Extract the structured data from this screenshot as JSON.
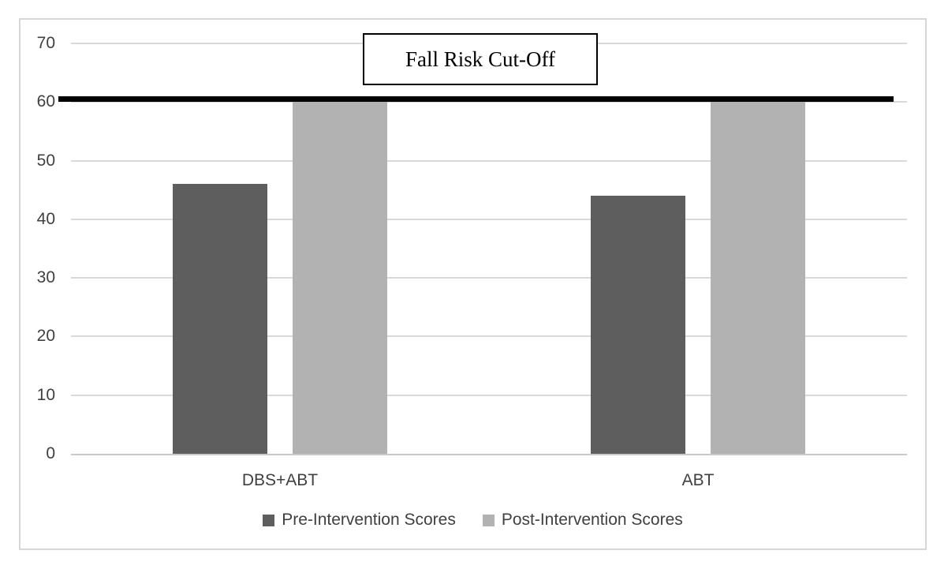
{
  "title_box": {
    "label": "Fall Risk Cut-Off"
  },
  "legend": {
    "items": [
      {
        "label": "Pre-Intervention Scores"
      },
      {
        "label": "Post-Intervention Scores"
      }
    ]
  },
  "colors": {
    "pre_bar": "#5e5e5e",
    "post_bar": "#b2b2b2",
    "gridline": "#d9d9d9",
    "cutoff_line": "#000000",
    "axis_text": "#404040",
    "figure_border": "#d6d6d6"
  },
  "chart_data": {
    "type": "bar",
    "categories": [
      "DBS+ABT",
      "ABT"
    ],
    "series": [
      {
        "name": "Pre-Intervention Scores",
        "color": "#5e5e5e",
        "values": [
          46,
          44
        ]
      },
      {
        "name": "Post-Intervention Scores",
        "color": "#b2b2b2",
        "values": [
          60,
          60
        ]
      }
    ],
    "title": "Fall Risk Cut-Off",
    "xlabel": "",
    "ylabel": "",
    "yticks": [
      0,
      10,
      20,
      30,
      40,
      50,
      60,
      70
    ],
    "ylim": [
      0,
      70
    ],
    "grid": true,
    "legend_position": "bottom",
    "annotations": [
      {
        "type": "hline",
        "y": 60,
        "label": "Fall Risk Cut-Off",
        "color": "#000000",
        "thickness": 7
      }
    ]
  }
}
